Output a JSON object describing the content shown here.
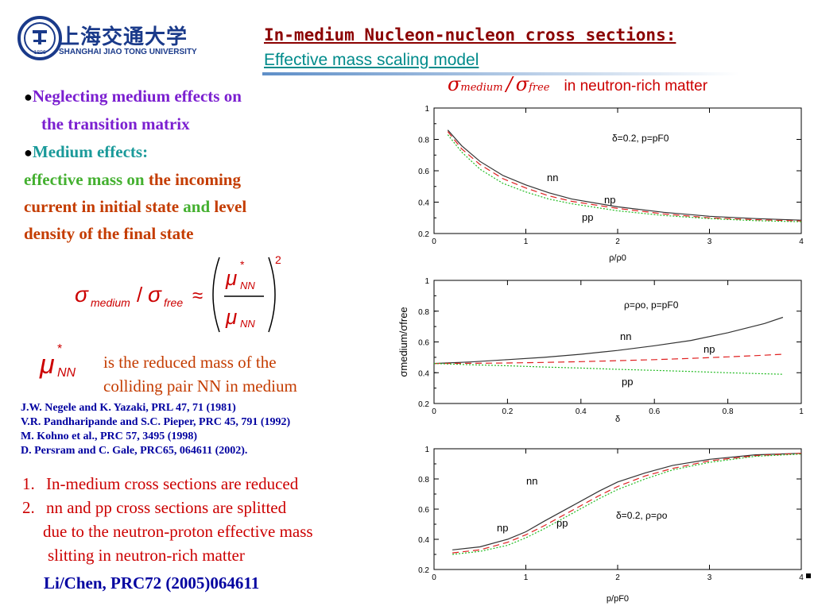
{
  "logo": {
    "cn": "上海交通大学",
    "en": "SHANGHAI  JIAO TONG  UNIVERSITY",
    "seal_year": "1896"
  },
  "title": {
    "line1": "In-medium Nucleon-nucleon cross sections:",
    "line2": "Effective mass scaling model"
  },
  "left": {
    "bullet1": {
      "line1": "Neglecting medium effects on",
      "line2": "the transition matrix"
    },
    "bullet2": {
      "heading": "Medium effects:",
      "part1": "effective mass on",
      "part2": " the incoming",
      "line2": "current in initial state ",
      "and": "and",
      "line2b": " level",
      "line3": "density of the final state"
    },
    "formula": {
      "sigma": "σ",
      "medium": "medium",
      "slash": "/",
      "free": "free",
      "approx": "≈",
      "mu": "μ",
      "star": "*",
      "nn": "NN",
      "power": "2"
    },
    "mu_def": {
      "mu": "μ",
      "star": "*",
      "nn": "NN",
      "line1": "is the reduced mass of the",
      "line2": "colliding pair NN in medium"
    },
    "refs": [
      "J.W. Negele and K. Yazaki, PRL 47, 71 (1981)",
      "V.R. Pandharipande and S.C. Pieper, PRC 45, 791 (1992)",
      "M. Kohno et al., PRC 57, 3495 (1998)",
      "D. Persram and C. Gale, PRC65, 064611 (2002)."
    ],
    "conclusions": [
      {
        "num": "1.",
        "text": "In-medium cross sections are reduced"
      },
      {
        "num": "2.",
        "text": "nn and pp  cross sections are splitted"
      }
    ],
    "concl_cont1": "due to the neutron-proton effective mass",
    "concl_cont2": "slitting in neutron-rich matter",
    "citation": "Li/Chen,  PRC72 (2005)064611"
  },
  "plot_header": {
    "sigma": "σ",
    "medium": "medium",
    "slash": "/",
    "free": "free",
    "text": "in neutron-rich matter"
  },
  "chart_data": [
    {
      "type": "line",
      "xlabel": "ρ/ρ0",
      "ylabel": "",
      "xlim": [
        0,
        4
      ],
      "ylim": [
        0.2,
        1
      ],
      "xticks": [
        "0",
        "1",
        "2",
        "3",
        "4"
      ],
      "yticks": [
        "0.2",
        "0.4",
        "0.6",
        "0.8",
        "1"
      ],
      "annotation": "δ=0.2, p=pF0",
      "series": [
        {
          "name": "nn",
          "color": "#333333",
          "style": "solid",
          "x": [
            0.15,
            0.3,
            0.5,
            0.75,
            1.0,
            1.25,
            1.5,
            2.0,
            2.5,
            3.0,
            3.5,
            4.0
          ],
          "y": [
            0.86,
            0.76,
            0.66,
            0.57,
            0.51,
            0.46,
            0.42,
            0.37,
            0.335,
            0.31,
            0.295,
            0.285
          ]
        },
        {
          "name": "np",
          "color": "#e02020",
          "style": "dashed",
          "x": [
            0.15,
            0.3,
            0.5,
            0.75,
            1.0,
            1.25,
            1.5,
            2.0,
            2.5,
            3.0,
            3.5,
            4.0
          ],
          "y": [
            0.85,
            0.74,
            0.64,
            0.55,
            0.49,
            0.44,
            0.405,
            0.36,
            0.325,
            0.3,
            0.288,
            0.28
          ]
        },
        {
          "name": "pp",
          "color": "#22bb22",
          "style": "dotted",
          "x": [
            0.15,
            0.3,
            0.5,
            0.75,
            1.0,
            1.25,
            1.5,
            2.0,
            2.5,
            3.0,
            3.5,
            4.0
          ],
          "y": [
            0.83,
            0.72,
            0.61,
            0.52,
            0.465,
            0.42,
            0.39,
            0.345,
            0.315,
            0.295,
            0.282,
            0.275
          ]
        }
      ]
    },
    {
      "type": "line",
      "xlabel": "δ",
      "ylabel": "σmedium/σfree",
      "xlim": [
        0,
        1
      ],
      "ylim": [
        0.2,
        1
      ],
      "xticks": [
        "0",
        "0.2",
        "0.4",
        "0.6",
        "0.8",
        "1"
      ],
      "yticks": [
        "0.2",
        "0.4",
        "0.6",
        "0.8",
        "1"
      ],
      "annotation": "ρ=ρo, p=pF0",
      "series": [
        {
          "name": "nn",
          "color": "#333333",
          "style": "solid",
          "x": [
            0,
            0.1,
            0.2,
            0.3,
            0.4,
            0.5,
            0.6,
            0.7,
            0.8,
            0.9,
            0.95
          ],
          "y": [
            0.46,
            0.47,
            0.485,
            0.5,
            0.52,
            0.545,
            0.575,
            0.61,
            0.66,
            0.72,
            0.76
          ]
        },
        {
          "name": "np",
          "color": "#e02020",
          "style": "dashed",
          "x": [
            0,
            0.1,
            0.2,
            0.3,
            0.4,
            0.5,
            0.6,
            0.7,
            0.8,
            0.9,
            0.95
          ],
          "y": [
            0.46,
            0.461,
            0.463,
            0.467,
            0.472,
            0.478,
            0.485,
            0.493,
            0.503,
            0.514,
            0.52
          ]
        },
        {
          "name": "pp",
          "color": "#22bb22",
          "style": "dotted",
          "x": [
            0,
            0.1,
            0.2,
            0.3,
            0.4,
            0.5,
            0.6,
            0.7,
            0.8,
            0.9,
            0.95
          ],
          "y": [
            0.46,
            0.452,
            0.445,
            0.437,
            0.43,
            0.422,
            0.415,
            0.408,
            0.4,
            0.393,
            0.39
          ]
        }
      ]
    },
    {
      "type": "line",
      "xlabel": "p/pF0",
      "ylabel": "",
      "xlim": [
        0,
        4
      ],
      "ylim": [
        0.2,
        1
      ],
      "xticks": [
        "0",
        "1",
        "2",
        "3",
        "4"
      ],
      "yticks": [
        "0.2",
        "0.4",
        "0.6",
        "0.8",
        "1"
      ],
      "annotation": "δ=0.2, ρ=ρo",
      "series": [
        {
          "name": "nn",
          "color": "#333333",
          "style": "solid",
          "x": [
            0.2,
            0.5,
            0.8,
            1.0,
            1.2,
            1.5,
            1.8,
            2.0,
            2.3,
            2.6,
            3.0,
            3.5,
            4.0
          ],
          "y": [
            0.33,
            0.35,
            0.4,
            0.45,
            0.52,
            0.62,
            0.72,
            0.78,
            0.84,
            0.89,
            0.93,
            0.96,
            0.97
          ]
        },
        {
          "name": "np",
          "color": "#e02020",
          "style": "dashed",
          "x": [
            0.2,
            0.5,
            0.8,
            1.0,
            1.2,
            1.5,
            1.8,
            2.0,
            2.3,
            2.6,
            3.0,
            3.5,
            4.0
          ],
          "y": [
            0.31,
            0.33,
            0.38,
            0.43,
            0.49,
            0.59,
            0.69,
            0.75,
            0.82,
            0.87,
            0.92,
            0.955,
            0.97
          ]
        },
        {
          "name": "pp",
          "color": "#22bb22",
          "style": "dotted",
          "x": [
            0.2,
            0.5,
            0.8,
            1.0,
            1.2,
            1.5,
            1.8,
            2.0,
            2.3,
            2.6,
            3.0,
            3.5,
            4.0
          ],
          "y": [
            0.3,
            0.32,
            0.36,
            0.41,
            0.47,
            0.57,
            0.67,
            0.73,
            0.8,
            0.86,
            0.91,
            0.95,
            0.965
          ]
        }
      ]
    }
  ]
}
